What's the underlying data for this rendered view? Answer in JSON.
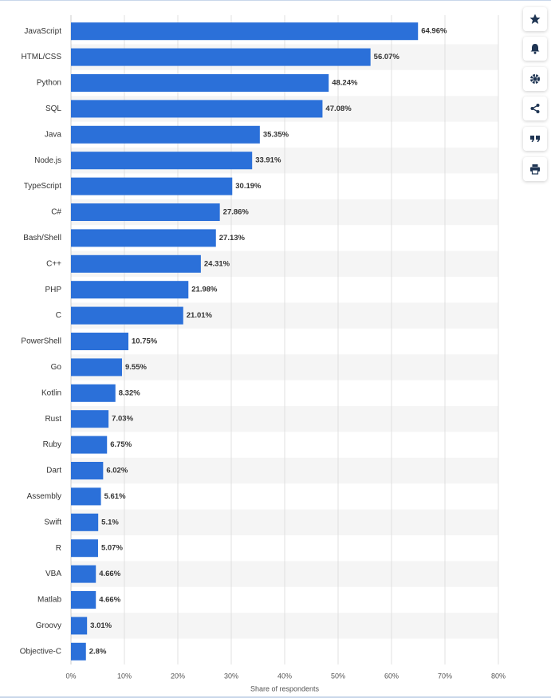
{
  "chart_data": {
    "type": "bar",
    "orientation": "horizontal",
    "x_label": "Share of respondents",
    "categories": [
      "JavaScript",
      "HTML/CSS",
      "Python",
      "SQL",
      "Java",
      "Node.js",
      "TypeScript",
      "C#",
      "Bash/Shell",
      "C++",
      "PHP",
      "C",
      "PowerShell",
      "Go",
      "Kotlin",
      "Rust",
      "Ruby",
      "Dart",
      "Assembly",
      "Swift",
      "R",
      "VBA",
      "Matlab",
      "Groovy",
      "Objective-C"
    ],
    "values": [
      64.96,
      56.07,
      48.24,
      47.08,
      35.35,
      33.91,
      30.19,
      27.86,
      27.13,
      24.31,
      21.98,
      21.01,
      10.75,
      9.55,
      8.32,
      7.03,
      6.75,
      6.02,
      5.61,
      5.1,
      5.07,
      4.66,
      4.66,
      3.01,
      2.8
    ],
    "value_labels": [
      "64.96%",
      "56.07%",
      "48.24%",
      "47.08%",
      "35.35%",
      "33.91%",
      "30.19%",
      "27.86%",
      "27.13%",
      "24.31%",
      "21.98%",
      "21.01%",
      "10.75%",
      "9.55%",
      "8.32%",
      "7.03%",
      "6.75%",
      "6.02%",
      "5.61%",
      "5.1%",
      "5.07%",
      "4.66%",
      "4.66%",
      "3.01%",
      "2.8%"
    ],
    "color": "#2b70d9",
    "xlim": [
      0,
      80
    ],
    "xticks": [
      {
        "value": 0,
        "label": "0%"
      },
      {
        "value": 10,
        "label": "10%"
      },
      {
        "value": 20,
        "label": "20%"
      },
      {
        "value": 30,
        "label": "30%"
      },
      {
        "value": 40,
        "label": "40%"
      },
      {
        "value": 50,
        "label": "50%"
      },
      {
        "value": 60,
        "label": "60%"
      },
      {
        "value": 70,
        "label": "70%"
      },
      {
        "value": 80,
        "label": "80%"
      }
    ],
    "grid": true
  }
}
